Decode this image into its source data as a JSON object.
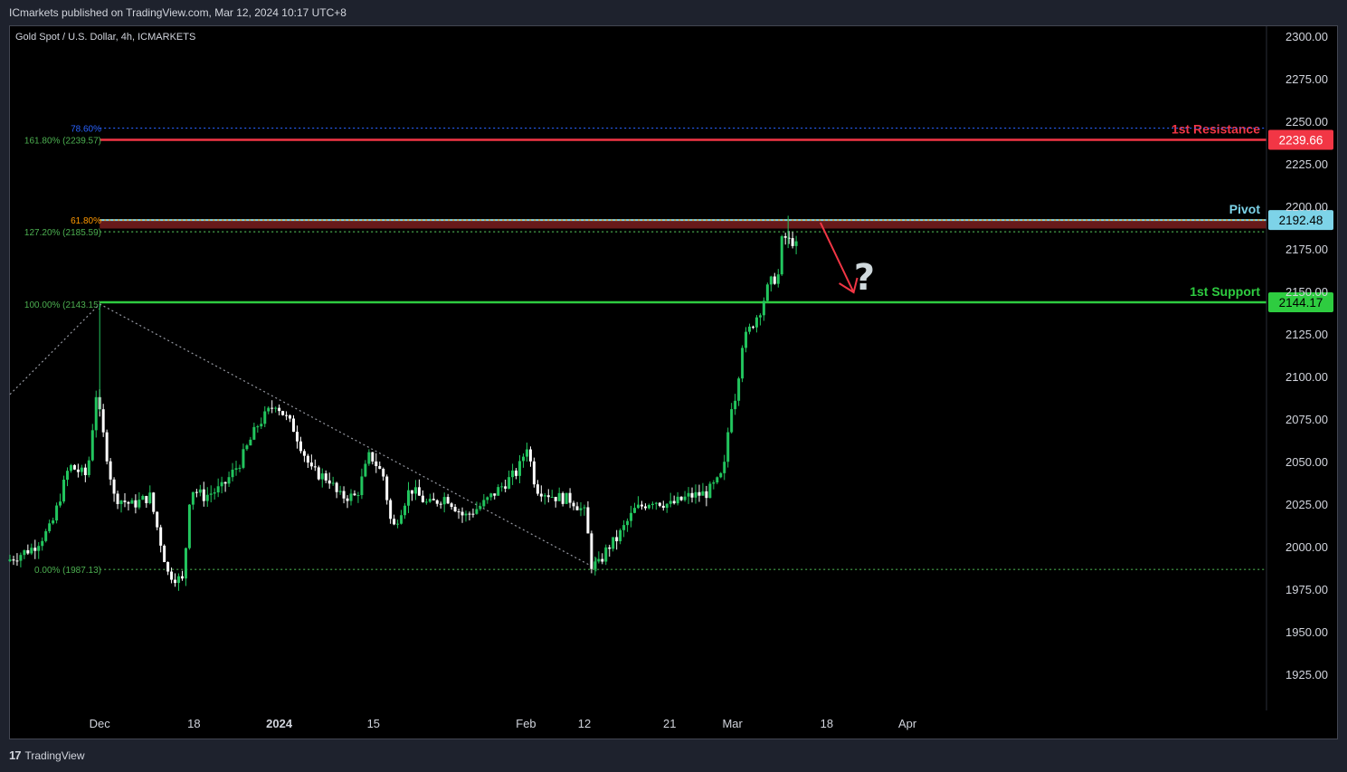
{
  "header": {
    "published": "ICmarkets published on TradingView.com, Mar 12, 2024 10:17 UTC+8",
    "symbol": "Gold Spot / U.S. Dollar, 4h, ICMARKETS"
  },
  "footer": {
    "brand": "TradingView",
    "logo_glyph": "17"
  },
  "colors": {
    "background": "#000000",
    "up": "#22c55e",
    "down": "#ffffff",
    "resistance": "#f23645",
    "pivot": "#7dd3e8",
    "support": "#2ecc40",
    "fib_green": "#4caf50",
    "fib_blue": "#2962ff",
    "fib_orange": "#ff9800",
    "axis_text": "#d1d4dc"
  },
  "chart_data": {
    "type": "candlestick",
    "title": "Gold Spot / U.S. Dollar, 4h, ICMARKETS",
    "ylim": [
      1900,
      2310
    ],
    "y_ticks": [
      "2300.00",
      "2275.00",
      "2250.00",
      "2225.00",
      "2200.00",
      "2175.00",
      "2150.00",
      "2125.00",
      "2100.00",
      "2075.00",
      "2050.00",
      "2025.00",
      "2000.00",
      "1975.00",
      "1950.00",
      "1925.00"
    ],
    "y_tick_values": [
      2300,
      2275,
      2250,
      2225,
      2200,
      2175,
      2150,
      2125,
      2100,
      2075,
      2050,
      2025,
      2000,
      1975,
      1950,
      1925
    ],
    "x_range": [
      0,
      140
    ],
    "x_ticks": [
      {
        "label": "Dec",
        "x": 10,
        "bold": false
      },
      {
        "label": "18",
        "x": 20.5,
        "bold": false
      },
      {
        "label": "2024",
        "x": 30,
        "bold": true
      },
      {
        "label": "15",
        "x": 40.5,
        "bold": false
      },
      {
        "label": "Feb",
        "x": 57.5,
        "bold": false
      },
      {
        "label": "12",
        "x": 64,
        "bold": false
      },
      {
        "label": "21",
        "x": 73.5,
        "bold": false
      },
      {
        "label": "Mar",
        "x": 80.5,
        "bold": false
      },
      {
        "label": "18",
        "x": 91,
        "bold": false
      },
      {
        "label": "Apr",
        "x": 100,
        "bold": false
      }
    ],
    "price_anchors": [
      {
        "x": 0,
        "price": 1992
      },
      {
        "x": 3,
        "price": 2000
      },
      {
        "x": 5,
        "price": 2012
      },
      {
        "x": 7,
        "price": 2048
      },
      {
        "x": 9,
        "price": 2042
      },
      {
        "x": 10,
        "price": 2090
      },
      {
        "x": 12,
        "price": 2030
      },
      {
        "x": 14,
        "price": 2025
      },
      {
        "x": 16,
        "price": 2030
      },
      {
        "x": 18,
        "price": 1985
      },
      {
        "x": 19.7,
        "price": 1980
      },
      {
        "x": 20.5,
        "price": 2035
      },
      {
        "x": 22,
        "price": 2030
      },
      {
        "x": 24,
        "price": 2035
      },
      {
        "x": 26,
        "price": 2050
      },
      {
        "x": 28,
        "price": 2072
      },
      {
        "x": 30,
        "price": 2085
      },
      {
        "x": 32,
        "price": 2070
      },
      {
        "x": 34,
        "price": 2045
      },
      {
        "x": 36,
        "price": 2040
      },
      {
        "x": 37,
        "price": 2030
      },
      {
        "x": 39,
        "price": 2030
      },
      {
        "x": 40.5,
        "price": 2055
      },
      {
        "x": 42,
        "price": 2042
      },
      {
        "x": 43,
        "price": 2010
      },
      {
        "x": 45,
        "price": 2035
      },
      {
        "x": 47,
        "price": 2025
      },
      {
        "x": 49,
        "price": 2030
      },
      {
        "x": 51,
        "price": 2018
      },
      {
        "x": 53,
        "price": 2025
      },
      {
        "x": 55,
        "price": 2035
      },
      {
        "x": 57,
        "price": 2045
      },
      {
        "x": 58,
        "price": 2060
      },
      {
        "x": 59,
        "price": 2035
      },
      {
        "x": 61,
        "price": 2030
      },
      {
        "x": 63,
        "price": 2028
      },
      {
        "x": 64.5,
        "price": 2020
      },
      {
        "x": 65.2,
        "price": 1990
      },
      {
        "x": 66,
        "price": 1990
      },
      {
        "x": 67,
        "price": 2000
      },
      {
        "x": 68,
        "price": 2005
      },
      {
        "x": 70,
        "price": 2022
      },
      {
        "x": 72,
        "price": 2028
      },
      {
        "x": 74,
        "price": 2025
      },
      {
        "x": 76,
        "price": 2030
      },
      {
        "x": 78,
        "price": 2032
      },
      {
        "x": 79.5,
        "price": 2040
      },
      {
        "x": 80,
        "price": 2048
      },
      {
        "x": 80.7,
        "price": 2083
      },
      {
        "x": 81.3,
        "price": 2090
      },
      {
        "x": 82,
        "price": 2120
      },
      {
        "x": 83,
        "price": 2130
      },
      {
        "x": 84,
        "price": 2140
      },
      {
        "x": 85,
        "price": 2155
      },
      {
        "x": 86,
        "price": 2160
      },
      {
        "x": 86.5,
        "price": 2185
      },
      {
        "x": 87,
        "price": 2180
      },
      {
        "x": 88,
        "price": 2180
      }
    ],
    "levels": [
      {
        "name": "1st Resistance",
        "price": 2239.66,
        "label": "1st Resistance",
        "value_label": "2239.66",
        "color": "#f23645"
      },
      {
        "name": "Pivot",
        "price": 2192.48,
        "label": "Pivot",
        "value_label": "2192.48",
        "color": "#7dd3e8"
      },
      {
        "name": "1st Support",
        "price": 2144.17,
        "label": "1st Support",
        "value_label": "2144.17",
        "color": "#2ecc40"
      }
    ],
    "fib_levels": [
      {
        "label": "78.60%",
        "price": 2246.5,
        "color": "#2962ff"
      },
      {
        "label": "161.80% (2239.57)",
        "price": 2239.57,
        "color": "#4caf50"
      },
      {
        "label": "61.80%",
        "price": 2192.5,
        "color": "#ff9800"
      },
      {
        "label": "127.20% (2185.59)",
        "price": 2185.59,
        "color": "#4caf50"
      },
      {
        "label": "100.00% (2143.15)",
        "price": 2143.15,
        "color": "#4caf50"
      },
      {
        "label": "0.00% (1987.13)",
        "price": 1987.13,
        "color": "#4caf50"
      }
    ],
    "annotations": {
      "question": "?",
      "arrow": {
        "from": {
          "x": 90.3,
          "price": 2191
        },
        "to": {
          "x": 94,
          "price": 2150
        }
      }
    },
    "trendlines": [
      {
        "from": {
          "x": 0,
          "price": 2090
        },
        "to": {
          "x": 10,
          "price": 2143.15
        }
      },
      {
        "from": {
          "x": 10,
          "price": 2143.15
        },
        "to": {
          "x": 65.5,
          "price": 1987.13
        }
      }
    ]
  }
}
